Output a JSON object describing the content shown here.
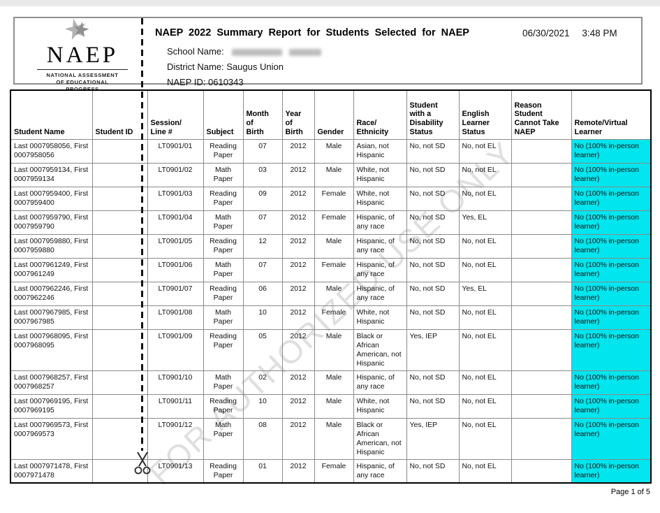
{
  "header": {
    "logo": {
      "name": "NAEP",
      "sub1": "NATIONAL ASSESSMENT",
      "sub2": "OF EDUCATIONAL",
      "sub3": "PROGRESS"
    },
    "title": "NAEP 2022 Summary Report for Students Selected for NAEP",
    "date": "06/30/2021",
    "time": "3:48 PM",
    "school_label": "School Name:",
    "district_label": "District Name:",
    "district_value": "Saugus Union",
    "naep_id_label": "NAEP ID:",
    "naep_id_value": "0610343"
  },
  "watermark": "FOR AUTHORIZED USE ONLY",
  "colors": {
    "highlight": "#00e5ee"
  },
  "table": {
    "columns": [
      {
        "key": "student_name",
        "label": "Student Name"
      },
      {
        "key": "student_id",
        "label": "Student ID"
      },
      {
        "key": "session_line",
        "label": "Session/\nLine #",
        "center": true
      },
      {
        "key": "subject",
        "label": "Subject",
        "center": true
      },
      {
        "key": "birth_month",
        "label": "Month\nof\nBirth",
        "center": true
      },
      {
        "key": "birth_year",
        "label": "Year\nof\nBirth",
        "center": true
      },
      {
        "key": "gender",
        "label": "Gender",
        "center": true
      },
      {
        "key": "race",
        "label": "Race/\nEthnicity"
      },
      {
        "key": "sd_status",
        "label": "Student\nwith a\nDisability\nStatus"
      },
      {
        "key": "el_status",
        "label": "English\nLearner\nStatus"
      },
      {
        "key": "reason",
        "label": "Reason\nStudent\nCannot Take\nNAEP"
      },
      {
        "key": "remote",
        "label": "Remote/Virtual\nLearner",
        "highlight": true
      }
    ],
    "rows": [
      [
        "Last 0007958056, First 0007958056",
        "",
        "LT0901/01",
        "Reading Paper",
        "07",
        "2012",
        "Male",
        "Asian, not Hispanic",
        "No, not SD",
        "No, not EL",
        "",
        "No (100% in-person learner)"
      ],
      [
        "Last 0007959134, First 0007959134",
        "",
        "LT0901/02",
        "Math Paper",
        "03",
        "2012",
        "Male",
        "White, not Hispanic",
        "No, not SD",
        "No, not EL",
        "",
        "No (100% in-person learner)"
      ],
      [
        "Last 0007959400, First 0007959400",
        "",
        "LT0901/03",
        "Reading Paper",
        "09",
        "2012",
        "Female",
        "White, not Hispanic",
        "No, not SD",
        "No, not EL",
        "",
        "No (100% in-person learner)"
      ],
      [
        "Last 0007959790, First 0007959790",
        "",
        "LT0901/04",
        "Math Paper",
        "07",
        "2012",
        "Female",
        "Hispanic, of any race",
        "No, not SD",
        "Yes, EL",
        "",
        "No (100% in-person learner)"
      ],
      [
        "Last 0007959880, First 0007959880",
        "",
        "LT0901/05",
        "Reading Paper",
        "12",
        "2012",
        "Male",
        "Hispanic, of any race",
        "No, not SD",
        "No, not EL",
        "",
        "No (100% in-person learner)"
      ],
      [
        "Last 0007961249, First 0007961249",
        "",
        "LT0901/06",
        "Math Paper",
        "07",
        "2012",
        "Female",
        "Hispanic, of any race",
        "No, not SD",
        "No, not EL",
        "",
        "No (100% in-person learner)"
      ],
      [
        "Last 0007962246, First 0007962246",
        "",
        "LT0901/07",
        "Reading Paper",
        "06",
        "2012",
        "Male",
        "Hispanic, of any race",
        "No, not SD",
        "Yes, EL",
        "",
        "No (100% in-person learner)"
      ],
      [
        "Last 0007967985, First 0007967985",
        "",
        "LT0901/08",
        "Math Paper",
        "10",
        "2012",
        "Female",
        "White, not Hispanic",
        "No, not SD",
        "No, not EL",
        "",
        "No (100% in-person learner)"
      ],
      [
        "Last 0007968095, First 0007968095",
        "",
        "LT0901/09",
        "Reading Paper",
        "05",
        "2012",
        "Male",
        "Black or African American, not Hispanic",
        "Yes, IEP",
        "No, not EL",
        "",
        "No (100% in-person learner)"
      ],
      [
        "Last 0007968257, First 0007968257",
        "",
        "LT0901/10",
        "Math Paper",
        "02",
        "2012",
        "Male",
        "Hispanic, of any race",
        "No, not SD",
        "No, not EL",
        "",
        "No (100% in-person learner)"
      ],
      [
        "Last 0007969195, First 0007969195",
        "",
        "LT0901/11",
        "Reading Paper",
        "10",
        "2012",
        "Male",
        "White, not Hispanic",
        "No, not SD",
        "No, not EL",
        "",
        "No (100% in-person learner)"
      ],
      [
        "Last 0007969573, First 0007969573",
        "",
        "LT0901/12",
        "Math Paper",
        "08",
        "2012",
        "Male",
        "Black or African American, not Hispanic",
        "Yes, IEP",
        "No, not EL",
        "",
        "No (100% in-person learner)"
      ],
      [
        "Last 0007971478, First 0007971478",
        "",
        "LT0901/13",
        "Reading Paper",
        "01",
        "2012",
        "Female",
        "Hispanic, of any race",
        "No, not SD",
        "No, not EL",
        "",
        "No (100% in-person learner)"
      ]
    ]
  },
  "footer": {
    "page_number": "Page 1 of 5"
  }
}
